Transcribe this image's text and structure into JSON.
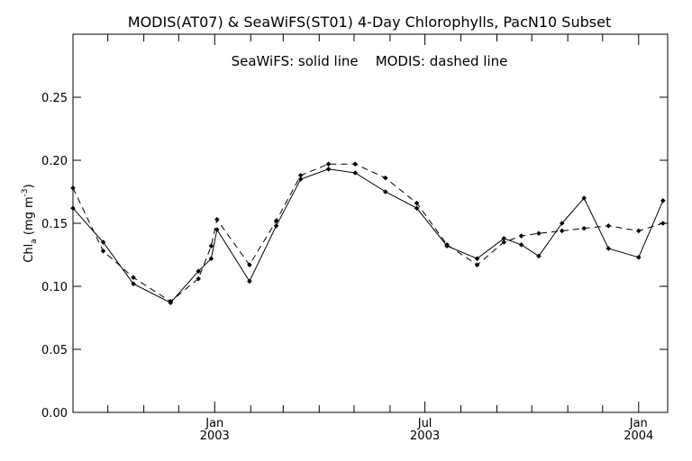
{
  "chart_data": {
    "type": "line",
    "title": "MODIS(AT07) & SeaWiFS(ST01) 4-Day Chlorophylls, PacN10 Subset",
    "annotation": "SeaWiFS: solid line    MODIS: dashed line",
    "ylabel": "Chl",
    "ylabel_sub": "a",
    "ylabel_units_pre": " (mg m",
    "ylabel_units_sup": "-3",
    "ylabel_units_post": ")",
    "ylim": [
      0.0,
      0.3
    ],
    "yticks": [
      "0.00",
      "0.05",
      "0.10",
      "0.15",
      "0.20",
      "0.25"
    ],
    "ytick_values": [
      0.0,
      0.05,
      0.1,
      0.15,
      0.2,
      0.25
    ],
    "xlim": [
      "2002-09-01",
      "2004-01-26"
    ],
    "xticks": [
      {
        "date": "2002-10-01",
        "line1": "",
        "line2": ""
      },
      {
        "date": "2002-11-01",
        "line1": "",
        "line2": ""
      },
      {
        "date": "2002-12-01",
        "line1": "",
        "line2": ""
      },
      {
        "date": "2003-01-01",
        "line1": "Jan",
        "line2": "2003"
      },
      {
        "date": "2003-02-01",
        "line1": "",
        "line2": ""
      },
      {
        "date": "2003-03-01",
        "line1": "",
        "line2": ""
      },
      {
        "date": "2003-04-01",
        "line1": "",
        "line2": ""
      },
      {
        "date": "2003-05-01",
        "line1": "",
        "line2": ""
      },
      {
        "date": "2003-06-01",
        "line1": "",
        "line2": ""
      },
      {
        "date": "2003-07-01",
        "line1": "Jul",
        "line2": "2003"
      },
      {
        "date": "2003-08-01",
        "line1": "",
        "line2": ""
      },
      {
        "date": "2003-09-01",
        "line1": "",
        "line2": ""
      },
      {
        "date": "2003-10-01",
        "line1": "",
        "line2": ""
      },
      {
        "date": "2003-11-01",
        "line1": "",
        "line2": ""
      },
      {
        "date": "2003-12-01",
        "line1": "",
        "line2": ""
      },
      {
        "date": "2004-01-01",
        "line1": "Jan",
        "line2": "2004"
      }
    ],
    "series": [
      {
        "name": "SeaWiFS",
        "style": "solid",
        "points": [
          {
            "x": "2002-09-01",
            "y": 0.162
          },
          {
            "x": "2002-09-27",
            "y": 0.135
          },
          {
            "x": "2002-10-23",
            "y": 0.102
          },
          {
            "x": "2002-11-24",
            "y": 0.087
          },
          {
            "x": "2002-12-18",
            "y": 0.112
          },
          {
            "x": "2002-12-29",
            "y": 0.122
          },
          {
            "x": "2003-01-03",
            "y": 0.145
          },
          {
            "x": "2003-01-31",
            "y": 0.104
          },
          {
            "x": "2003-02-23",
            "y": 0.148
          },
          {
            "x": "2003-03-16",
            "y": 0.185
          },
          {
            "x": "2003-04-09",
            "y": 0.193
          },
          {
            "x": "2003-05-02",
            "y": 0.19
          },
          {
            "x": "2003-05-28",
            "y": 0.175
          },
          {
            "x": "2003-06-24",
            "y": 0.162
          },
          {
            "x": "2003-07-20",
            "y": 0.132
          },
          {
            "x": "2003-08-15",
            "y": 0.122
          },
          {
            "x": "2003-09-07",
            "y": 0.138
          },
          {
            "x": "2003-09-22",
            "y": 0.133
          },
          {
            "x": "2003-10-07",
            "y": 0.124
          },
          {
            "x": "2003-10-27",
            "y": 0.15
          },
          {
            "x": "2003-11-15",
            "y": 0.17
          },
          {
            "x": "2003-12-06",
            "y": 0.13
          },
          {
            "x": "2004-01-01",
            "y": 0.123
          },
          {
            "x": "2004-01-22",
            "y": 0.168
          }
        ]
      },
      {
        "name": "MODIS",
        "style": "dashed",
        "points": [
          {
            "x": "2002-09-01",
            "y": 0.178
          },
          {
            "x": "2002-09-27",
            "y": 0.128
          },
          {
            "x": "2002-10-23",
            "y": 0.107
          },
          {
            "x": "2002-11-24",
            "y": 0.088
          },
          {
            "x": "2002-12-18",
            "y": 0.106
          },
          {
            "x": "2002-12-29",
            "y": 0.132
          },
          {
            "x": "2003-01-03",
            "y": 0.153
          },
          {
            "x": "2003-01-31",
            "y": 0.117
          },
          {
            "x": "2003-02-23",
            "y": 0.152
          },
          {
            "x": "2003-03-16",
            "y": 0.188
          },
          {
            "x": "2003-04-09",
            "y": 0.197
          },
          {
            "x": "2003-05-02",
            "y": 0.197
          },
          {
            "x": "2003-05-28",
            "y": 0.186
          },
          {
            "x": "2003-06-24",
            "y": 0.166
          },
          {
            "x": "2003-07-20",
            "y": 0.133
          },
          {
            "x": "2003-08-15",
            "y": 0.117
          },
          {
            "x": "2003-09-07",
            "y": 0.135
          },
          {
            "x": "2003-09-22",
            "y": 0.14
          },
          {
            "x": "2003-10-07",
            "y": 0.142
          },
          {
            "x": "2003-10-27",
            "y": 0.144
          },
          {
            "x": "2003-11-15",
            "y": 0.146
          },
          {
            "x": "2003-12-06",
            "y": 0.148
          },
          {
            "x": "2004-01-01",
            "y": 0.144
          },
          {
            "x": "2004-01-22",
            "y": 0.15
          }
        ]
      }
    ]
  }
}
